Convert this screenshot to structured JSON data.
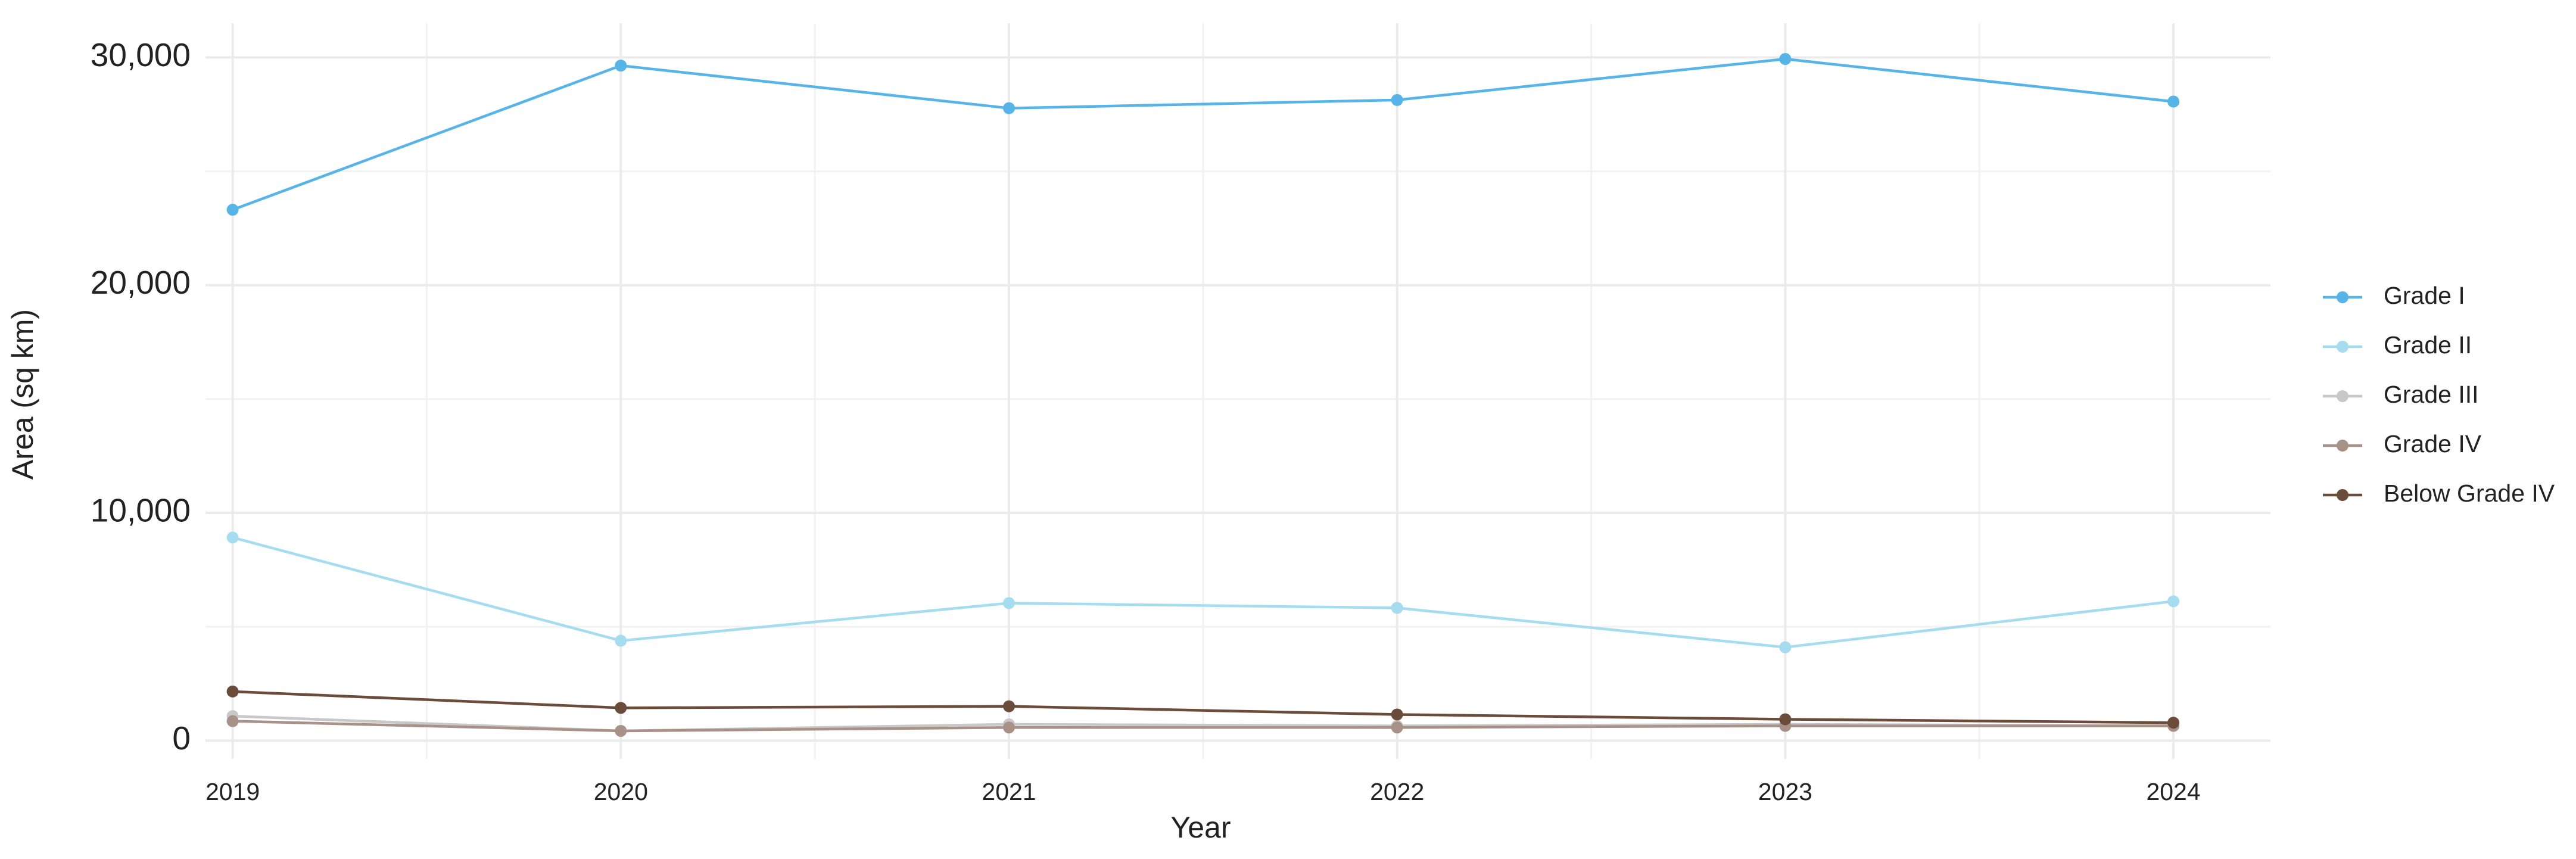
{
  "chart_data": {
    "type": "line",
    "x_label": "Year",
    "y_label": "Area (sq km)",
    "x": [
      2019,
      2020,
      2021,
      2022,
      2023,
      2024
    ],
    "series": [
      {
        "name": "Grade I",
        "color": "#56b4e9",
        "values": [
          23310,
          29640,
          27770,
          28130,
          29930,
          28060
        ]
      },
      {
        "name": "Grade II",
        "color": "#a6dcef",
        "values": [
          8920,
          4390,
          6040,
          5830,
          4100,
          6120
        ]
      },
      {
        "name": "Grade III",
        "color": "#c8c8c8",
        "values": [
          1080,
          430,
          720,
          650,
          720,
          650
        ]
      },
      {
        "name": "Grade IV",
        "color": "#a89288",
        "values": [
          860,
          430,
          580,
          580,
          650,
          650
        ]
      },
      {
        "name": "Below Grade IV",
        "color": "#6b4c3b",
        "values": [
          2160,
          1440,
          1510,
          1150,
          940,
          790
        ]
      }
    ],
    "xlim": [
      2018.93,
      2024.25
    ],
    "xticks": [
      2019,
      2020,
      2021,
      2022,
      2023,
      2024
    ],
    "ylim": [
      -800,
      31500
    ],
    "yticks": [
      0,
      {
        "value": 10000,
        "label": "10,000"
      },
      {
        "value": 20000,
        "label": "20,000"
      },
      {
        "value": 30000,
        "label": "30,000"
      }
    ],
    "grid": true,
    "legend": "right"
  }
}
